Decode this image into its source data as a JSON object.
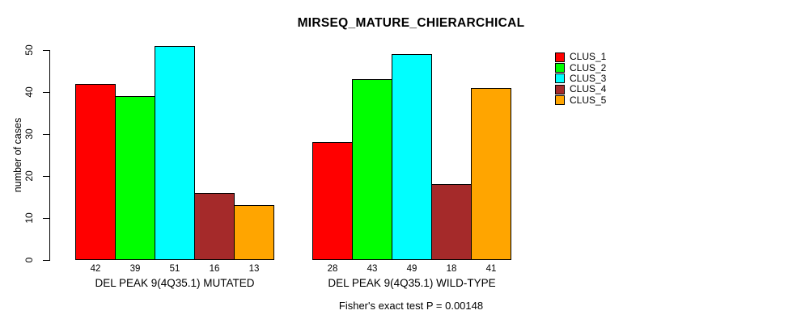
{
  "chart_data": {
    "type": "bar",
    "title": "MIRSEQ_MATURE_CHIERARCHICAL",
    "ylabel": "number of cases",
    "xlabel": "",
    "ylim": [
      0,
      50
    ],
    "yticks": [
      0,
      10,
      20,
      30,
      40,
      50
    ],
    "grid": false,
    "legend_position": "top-right",
    "bar_border_color": "#000000",
    "series": [
      {
        "name": "CLUS_1",
        "color": "#FF0000"
      },
      {
        "name": "CLUS_2",
        "color": "#00FF00"
      },
      {
        "name": "CLUS_3",
        "color": "#00FFFF"
      },
      {
        "name": "CLUS_4",
        "color": "#A52A2A"
      },
      {
        "name": "CLUS_5",
        "color": "#FFA500"
      }
    ],
    "groups": [
      {
        "label": "DEL PEAK 9(4Q35.1) MUTATED",
        "values": [
          42,
          39,
          51,
          16,
          13
        ]
      },
      {
        "label": "DEL PEAK 9(4Q35.1) WILD-TYPE",
        "values": [
          28,
          43,
          49,
          18,
          41
        ]
      }
    ],
    "value_labels_shown": true,
    "footnote": "Fisher's exact test P = 0.00148"
  }
}
